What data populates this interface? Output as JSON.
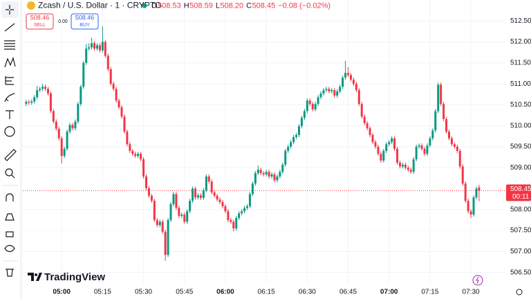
{
  "header": {
    "symbol": "Zcash / U.S. Dollar · 1 · CRYPTO",
    "ohlc_legend": [
      {
        "label": "O",
        "value": "508.53"
      },
      {
        "label": "H",
        "value": "508.59"
      },
      {
        "label": "L",
        "value": "508.20"
      },
      {
        "label": "C",
        "value": "508.45"
      }
    ],
    "change": "−0.08 (−0.02%)"
  },
  "trade": {
    "sell_price": "508.46",
    "sell_label": "SELL",
    "spread": "0.00",
    "buy_price": "508.46",
    "buy_label": "BUY"
  },
  "brand": "TradingView",
  "chart_data": {
    "type": "candlestick",
    "up_color": "#089981",
    "down_color": "#f23645",
    "grid": true,
    "xlim": [
      285,
      462.4
    ],
    "ylim": [
      506.23,
      513.0
    ],
    "xticks": [
      {
        "value": 300,
        "label": "05:00"
      },
      {
        "value": 315,
        "label": "05:15"
      },
      {
        "value": 330,
        "label": "05:30"
      },
      {
        "value": 345,
        "label": "05:45"
      },
      {
        "value": 360,
        "label": "06:00"
      },
      {
        "value": 375,
        "label": "06:15"
      },
      {
        "value": 390,
        "label": "06:30"
      },
      {
        "value": 405,
        "label": "06:45"
      },
      {
        "value": 420,
        "label": "07:00"
      },
      {
        "value": 435,
        "label": "07:15"
      },
      {
        "value": 450,
        "label": "07:30"
      }
    ],
    "yticks": [
      {
        "value": 512.5,
        "label": "512.50"
      },
      {
        "value": 512,
        "label": "512.00"
      },
      {
        "value": 511.5,
        "label": "511.50"
      },
      {
        "value": 511,
        "label": "511.00"
      },
      {
        "value": 510.5,
        "label": "510.50"
      },
      {
        "value": 510,
        "label": "510.00"
      },
      {
        "value": 509.5,
        "label": "509.50"
      },
      {
        "value": 509,
        "label": "509.00"
      },
      {
        "value": 508,
        "label": "508.00"
      },
      {
        "value": 507.5,
        "label": "507.50"
      },
      {
        "value": 507,
        "label": "507.00"
      },
      {
        "value": 506.5,
        "label": "506.50"
      }
    ],
    "last_price": 508.45,
    "countdown": "00:11",
    "x": [
      287,
      288,
      289,
      290,
      291,
      292,
      293,
      294,
      295,
      296,
      297,
      298,
      299,
      300,
      301,
      302,
      303,
      304,
      305,
      306,
      307,
      308,
      309,
      310,
      311,
      312,
      313,
      314,
      315,
      316,
      317,
      318,
      319,
      320,
      321,
      322,
      323,
      324,
      325,
      326,
      327,
      328,
      329,
      330,
      331,
      332,
      333,
      334,
      335,
      336,
      337,
      338,
      339,
      340,
      341,
      342,
      343,
      344,
      345,
      346,
      347,
      348,
      349,
      350,
      351,
      352,
      353,
      354,
      355,
      356,
      357,
      358,
      359,
      360,
      361,
      362,
      363,
      364,
      365,
      366,
      367,
      368,
      369,
      370,
      371,
      372,
      373,
      374,
      375,
      376,
      377,
      378,
      379,
      380,
      381,
      382,
      383,
      384,
      385,
      386,
      387,
      388,
      389,
      390,
      391,
      392,
      393,
      394,
      395,
      396,
      397,
      398,
      399,
      400,
      401,
      402,
      403,
      404,
      405,
      406,
      407,
      408,
      409,
      410,
      411,
      412,
      413,
      414,
      415,
      416,
      417,
      418,
      419,
      420,
      421,
      422,
      423,
      424,
      425,
      426,
      427,
      428,
      429,
      430,
      431,
      432,
      433,
      434,
      435,
      436,
      437,
      438,
      439,
      440,
      441,
      442,
      443,
      444,
      445,
      446,
      447,
      448,
      449,
      450,
      451,
      452,
      453
    ],
    "ohlc": [
      [
        510.52,
        510.62,
        510.47,
        510.57
      ],
      [
        510.57,
        510.62,
        510.5,
        510.55
      ],
      [
        510.55,
        510.63,
        510.5,
        510.58
      ],
      [
        510.58,
        510.73,
        510.53,
        510.68
      ],
      [
        510.68,
        510.95,
        510.63,
        510.85
      ],
      [
        510.85,
        510.93,
        510.8,
        510.88
      ],
      [
        510.88,
        511.0,
        510.83,
        510.93
      ],
      [
        510.93,
        510.98,
        510.83,
        510.88
      ],
      [
        510.88,
        510.93,
        510.72,
        510.77
      ],
      [
        510.77,
        510.82,
        510.3,
        510.35
      ],
      [
        510.35,
        510.4,
        510.05,
        510.1
      ],
      [
        510.1,
        510.15,
        509.88,
        509.93
      ],
      [
        509.93,
        509.98,
        509.65,
        509.7
      ],
      [
        509.7,
        509.75,
        509.1,
        509.28
      ],
      [
        509.28,
        509.5,
        509.23,
        509.45
      ],
      [
        509.45,
        509.91,
        509.4,
        509.86
      ],
      [
        509.86,
        510.07,
        509.81,
        510.02
      ],
      [
        510.02,
        510.07,
        509.89,
        509.94
      ],
      [
        509.94,
        510.15,
        509.89,
        510.1
      ],
      [
        510.1,
        510.57,
        510.05,
        510.52
      ],
      [
        510.52,
        510.98,
        510.47,
        510.93
      ],
      [
        510.93,
        511.55,
        510.88,
        511.5
      ],
      [
        511.5,
        511.95,
        511.45,
        511.84
      ],
      [
        511.84,
        511.97,
        511.79,
        511.87
      ],
      [
        511.87,
        512.1,
        511.82,
        511.97
      ],
      [
        511.97,
        512.02,
        511.79,
        511.84
      ],
      [
        511.84,
        511.97,
        511.79,
        511.92
      ],
      [
        511.92,
        511.97,
        511.75,
        511.8
      ],
      [
        511.8,
        512.37,
        511.75,
        512.0
      ],
      [
        512.0,
        512.05,
        511.62,
        511.67
      ],
      [
        511.67,
        511.72,
        511.3,
        511.35
      ],
      [
        511.35,
        511.4,
        510.95,
        511.0
      ],
      [
        511.0,
        511.05,
        510.83,
        510.88
      ],
      [
        510.88,
        510.93,
        510.55,
        510.6
      ],
      [
        510.6,
        510.65,
        510.39,
        510.44
      ],
      [
        510.44,
        510.49,
        510.17,
        510.22
      ],
      [
        510.22,
        510.27,
        509.81,
        509.86
      ],
      [
        509.86,
        509.91,
        509.51,
        509.56
      ],
      [
        509.56,
        509.61,
        509.35,
        509.4
      ],
      [
        509.4,
        509.45,
        509.28,
        509.33
      ],
      [
        509.33,
        509.38,
        509.23,
        509.28
      ],
      [
        509.28,
        509.38,
        509.23,
        509.33
      ],
      [
        509.33,
        509.38,
        509.15,
        509.2
      ],
      [
        509.2,
        509.25,
        508.74,
        508.79
      ],
      [
        508.79,
        508.84,
        508.46,
        508.51
      ],
      [
        508.51,
        508.56,
        508.28,
        508.33
      ],
      [
        508.33,
        508.38,
        508.16,
        508.21
      ],
      [
        508.21,
        508.26,
        507.7,
        507.75
      ],
      [
        507.75,
        507.8,
        507.58,
        507.63
      ],
      [
        507.63,
        507.76,
        507.58,
        507.71
      ],
      [
        507.71,
        507.76,
        507.42,
        507.47
      ],
      [
        507.47,
        507.52,
        506.78,
        506.92
      ],
      [
        506.92,
        507.8,
        506.87,
        507.75
      ],
      [
        507.75,
        508.18,
        507.7,
        508.13
      ],
      [
        508.13,
        508.42,
        508.08,
        508.37
      ],
      [
        508.37,
        508.42,
        507.99,
        508.04
      ],
      [
        508.04,
        508.09,
        507.8,
        507.85
      ],
      [
        507.85,
        507.93,
        507.8,
        507.88
      ],
      [
        507.88,
        507.93,
        507.66,
        507.71
      ],
      [
        507.71,
        508.01,
        507.66,
        507.96
      ],
      [
        507.96,
        508.26,
        507.91,
        508.21
      ],
      [
        508.21,
        508.55,
        508.16,
        508.5
      ],
      [
        508.5,
        508.55,
        508.24,
        508.29
      ],
      [
        508.29,
        508.39,
        508.24,
        508.34
      ],
      [
        508.34,
        508.39,
        508.23,
        508.28
      ],
      [
        508.28,
        508.51,
        508.23,
        508.46
      ],
      [
        508.46,
        508.84,
        508.41,
        508.79
      ],
      [
        508.79,
        508.84,
        508.62,
        508.67
      ],
      [
        508.67,
        508.72,
        508.36,
        508.41
      ],
      [
        508.41,
        508.46,
        508.28,
        508.33
      ],
      [
        508.33,
        508.38,
        508.19,
        508.24
      ],
      [
        508.24,
        508.29,
        508.13,
        508.18
      ],
      [
        508.18,
        508.23,
        508.03,
        508.08
      ],
      [
        508.08,
        508.13,
        507.91,
        507.96
      ],
      [
        507.96,
        508.01,
        507.7,
        507.75
      ],
      [
        507.75,
        507.8,
        507.66,
        507.71
      ],
      [
        507.71,
        507.76,
        507.48,
        507.55
      ],
      [
        507.55,
        507.85,
        507.5,
        507.8
      ],
      [
        507.8,
        507.96,
        507.75,
        507.91
      ],
      [
        507.91,
        508.01,
        507.86,
        507.96
      ],
      [
        507.96,
        508.09,
        507.91,
        508.04
      ],
      [
        508.04,
        508.13,
        507.99,
        508.08
      ],
      [
        508.08,
        508.42,
        508.03,
        508.37
      ],
      [
        508.37,
        508.67,
        508.32,
        508.62
      ],
      [
        508.62,
        508.92,
        508.57,
        508.87
      ],
      [
        508.87,
        509.05,
        508.82,
        508.95
      ],
      [
        508.95,
        509.0,
        508.82,
        508.87
      ],
      [
        508.87,
        508.92,
        508.79,
        508.84
      ],
      [
        508.84,
        508.95,
        508.79,
        508.9
      ],
      [
        508.9,
        508.95,
        508.74,
        508.79
      ],
      [
        508.79,
        508.89,
        508.74,
        508.84
      ],
      [
        508.84,
        508.89,
        508.65,
        508.7
      ],
      [
        508.7,
        508.84,
        508.65,
        508.79
      ],
      [
        508.79,
        508.95,
        508.74,
        508.9
      ],
      [
        508.9,
        509.12,
        508.85,
        509.07
      ],
      [
        509.07,
        509.45,
        509.02,
        509.4
      ],
      [
        509.4,
        509.55,
        509.35,
        509.5
      ],
      [
        509.5,
        509.66,
        509.45,
        509.61
      ],
      [
        509.61,
        509.78,
        509.56,
        509.73
      ],
      [
        509.73,
        509.83,
        509.68,
        509.78
      ],
      [
        509.78,
        510.04,
        509.73,
        509.99
      ],
      [
        509.99,
        510.24,
        509.94,
        510.19
      ],
      [
        510.19,
        510.4,
        510.14,
        510.35
      ],
      [
        510.35,
        510.65,
        510.3,
        510.6
      ],
      [
        510.6,
        510.65,
        510.47,
        510.52
      ],
      [
        510.52,
        510.57,
        510.34,
        510.39
      ],
      [
        510.39,
        510.57,
        510.34,
        510.52
      ],
      [
        510.52,
        510.73,
        510.47,
        510.68
      ],
      [
        510.68,
        510.82,
        510.63,
        510.77
      ],
      [
        510.77,
        510.9,
        510.72,
        510.85
      ],
      [
        510.85,
        510.93,
        510.8,
        510.88
      ],
      [
        510.88,
        510.93,
        510.77,
        510.82
      ],
      [
        510.82,
        510.9,
        510.77,
        510.85
      ],
      [
        510.85,
        510.9,
        510.67,
        510.72
      ],
      [
        510.72,
        510.87,
        510.67,
        510.82
      ],
      [
        510.82,
        510.98,
        510.77,
        510.93
      ],
      [
        510.93,
        511.2,
        510.88,
        511.15
      ],
      [
        511.15,
        511.55,
        511.1,
        511.26
      ],
      [
        511.26,
        511.4,
        511.16,
        511.21
      ],
      [
        511.21,
        511.26,
        511.05,
        511.1
      ],
      [
        511.1,
        511.15,
        510.95,
        511.0
      ],
      [
        511.0,
        511.05,
        510.8,
        510.85
      ],
      [
        510.85,
        510.9,
        510.47,
        510.52
      ],
      [
        510.52,
        510.57,
        510.17,
        510.22
      ],
      [
        510.22,
        510.27,
        510.01,
        510.06
      ],
      [
        510.06,
        510.11,
        509.89,
        509.94
      ],
      [
        509.94,
        509.99,
        509.73,
        509.78
      ],
      [
        509.78,
        509.83,
        509.56,
        509.61
      ],
      [
        509.61,
        509.66,
        509.45,
        509.5
      ],
      [
        509.5,
        509.55,
        509.28,
        509.33
      ],
      [
        509.33,
        509.38,
        509.12,
        509.17
      ],
      [
        509.17,
        509.45,
        509.12,
        509.4
      ],
      [
        509.4,
        509.61,
        509.35,
        509.56
      ],
      [
        509.56,
        509.66,
        509.51,
        509.61
      ],
      [
        509.61,
        509.75,
        509.56,
        509.7
      ],
      [
        509.7,
        509.75,
        509.4,
        509.45
      ],
      [
        509.45,
        509.5,
        509.07,
        509.12
      ],
      [
        509.12,
        509.17,
        508.98,
        509.03
      ],
      [
        509.03,
        509.12,
        508.98,
        509.07
      ],
      [
        509.07,
        509.12,
        508.95,
        509.0
      ],
      [
        509.0,
        509.05,
        508.9,
        508.95
      ],
      [
        508.95,
        509.0,
        508.85,
        508.9
      ],
      [
        508.9,
        509.25,
        508.85,
        509.2
      ],
      [
        509.2,
        509.55,
        509.15,
        509.5
      ],
      [
        509.5,
        509.58,
        509.45,
        509.53
      ],
      [
        509.53,
        509.58,
        509.4,
        509.45
      ],
      [
        509.45,
        509.5,
        509.28,
        509.33
      ],
      [
        509.33,
        509.58,
        509.28,
        509.53
      ],
      [
        509.53,
        509.75,
        509.48,
        509.7
      ],
      [
        509.7,
        509.94,
        509.65,
        509.89
      ],
      [
        509.89,
        510.4,
        509.84,
        510.35
      ],
      [
        510.35,
        511.03,
        510.3,
        510.98
      ],
      [
        510.98,
        511.03,
        510.47,
        510.52
      ],
      [
        510.52,
        510.57,
        510.11,
        510.16
      ],
      [
        510.16,
        510.21,
        509.81,
        509.86
      ],
      [
        509.86,
        509.91,
        509.65,
        509.7
      ],
      [
        509.7,
        509.75,
        509.51,
        509.56
      ],
      [
        509.56,
        509.61,
        509.45,
        509.5
      ],
      [
        509.5,
        509.55,
        509.35,
        509.4
      ],
      [
        509.4,
        509.45,
        508.98,
        509.03
      ],
      [
        509.03,
        509.08,
        508.57,
        508.62
      ],
      [
        508.62,
        508.67,
        508.16,
        508.21
      ],
      [
        508.21,
        508.26,
        507.91,
        507.96
      ],
      [
        507.96,
        508.01,
        507.8,
        507.88
      ],
      [
        507.88,
        508.34,
        507.83,
        508.29
      ],
      [
        508.29,
        508.55,
        508.24,
        508.5
      ],
      [
        508.53,
        508.59,
        508.2,
        508.45
      ]
    ]
  }
}
